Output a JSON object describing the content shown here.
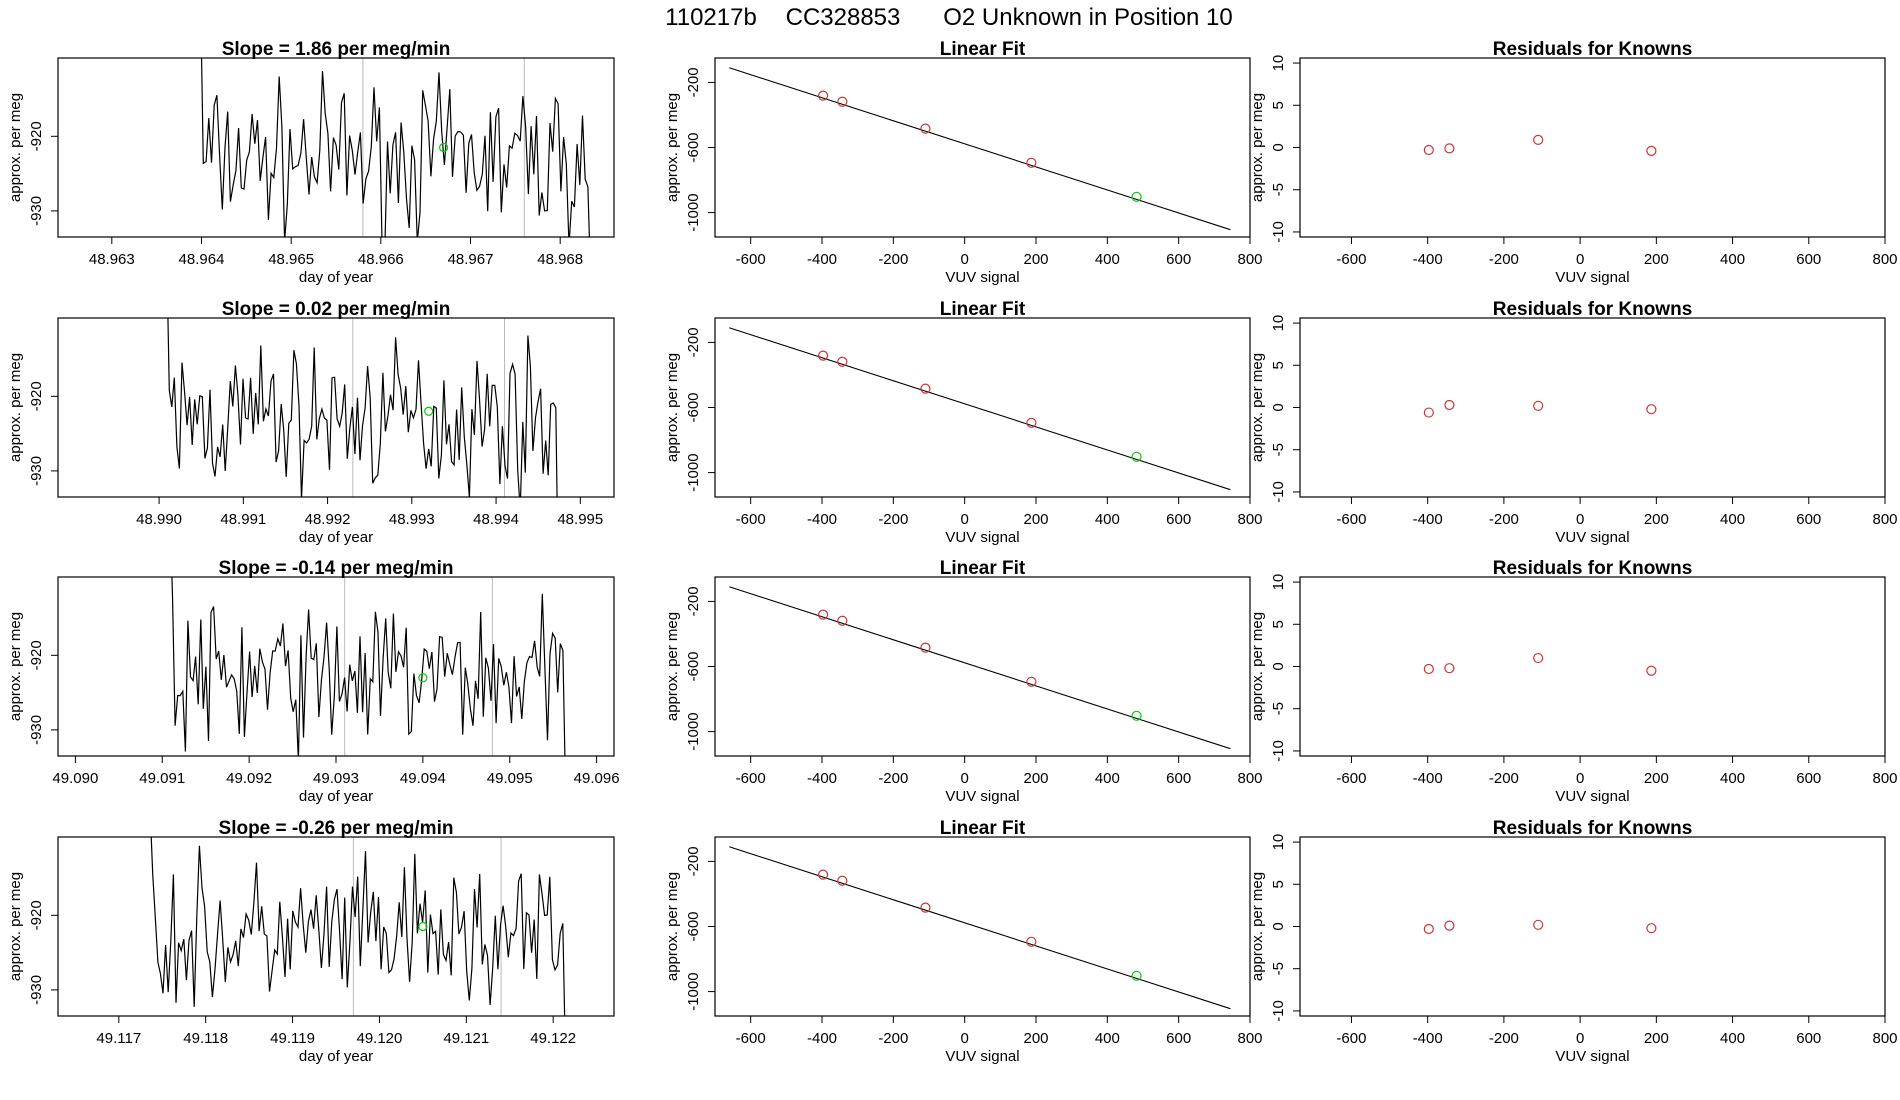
{
  "main_title": {
    "run_id": "110217b",
    "cylinder": "CC328853",
    "description": "O2 Unknown in Position  10"
  },
  "colors": {
    "trace": "#000000",
    "known_points": "#cd3333",
    "unknown_point": "#00cc00",
    "vline": "#bbbbbb",
    "frame": "#000000"
  },
  "chart_data": [
    {
      "type": "line",
      "title": "Slope =  1.86  per meg/min",
      "slope": 1.86,
      "xlabel": "day of year",
      "ylabel": "approx. per meg",
      "xlim": [
        48.9624,
        48.9686
      ],
      "ylim": [
        -933.5,
        -909.5
      ],
      "xticks": [
        48.963,
        48.964,
        48.965,
        48.966,
        48.967,
        48.968
      ],
      "xtick_labels": [
        "48.963",
        "48.964",
        "48.965",
        "48.966",
        "48.967",
        "48.968"
      ],
      "yticks": [
        -930,
        -920
      ],
      "ytick_labels": [
        "-930",
        "-920"
      ],
      "vlines": [
        48.9658,
        48.9676
      ],
      "trace_start": 48.9639,
      "trace_end": 48.9684,
      "trace_points": 150,
      "unknown_point": {
        "x": 48.9667,
        "y": -921.5
      }
    },
    {
      "type": "scatter",
      "title": "Linear Fit",
      "xlabel": "VUV signal",
      "ylabel": "approx. per meg",
      "xlim": [
        -700,
        800
      ],
      "ylim": [
        -1150,
        -50
      ],
      "xticks": [
        -600,
        -400,
        -200,
        0,
        200,
        400,
        600,
        800
      ],
      "xtick_labels": [
        "-600",
        "-400",
        "-200",
        "0",
        "200",
        "400",
        "600",
        "800"
      ],
      "yticks": [
        -1000,
        -600,
        -200
      ],
      "ytick_labels": [
        "-1000",
        "-600",
        "-200"
      ],
      "fit_line": {
        "x": [
          -660,
          745
        ],
        "y": [
          -110,
          -1105
        ]
      },
      "known_points": {
        "x": [
          -397,
          -343,
          -110,
          187
        ],
        "y": [
          -281,
          -319,
          -484,
          -694
        ]
      },
      "unknown_point": {
        "x": 482,
        "y": -903
      }
    },
    {
      "type": "scatter",
      "title": "Residuals for Knowns",
      "xlabel": "VUV signal",
      "ylabel": "approx. per meg",
      "xlim": [
        -735,
        800
      ],
      "ylim": [
        -10.6,
        10.6
      ],
      "xticks": [
        -600,
        -400,
        -200,
        0,
        200,
        400,
        600,
        800
      ],
      "xtick_labels": [
        "-600",
        "-400",
        "-200",
        "0",
        "200",
        "400",
        "600",
        "800"
      ],
      "yticks": [
        -10,
        -5,
        0,
        5,
        10
      ],
      "ytick_labels": [
        "-10",
        "-5",
        "0",
        "5",
        "10"
      ],
      "known_points": {
        "x": [
          -397,
          -343,
          -110,
          187
        ],
        "y": [
          -0.3,
          -0.1,
          0.9,
          -0.4
        ]
      }
    },
    {
      "type": "line",
      "title": "Slope =  0.02  per meg/min",
      "slope": 0.02,
      "xlabel": "day of year",
      "ylabel": "approx. per meg",
      "xlim": [
        48.9888,
        48.9954
      ],
      "ylim": [
        -933.5,
        -909.5
      ],
      "xticks": [
        48.99,
        48.991,
        48.992,
        48.993,
        48.994,
        48.995
      ],
      "xtick_labels": [
        "48.990",
        "48.991",
        "48.992",
        "48.993",
        "48.994",
        "48.995"
      ],
      "yticks": [
        -930,
        -920
      ],
      "ytick_labels": [
        "-930",
        "-920"
      ],
      "vlines": [
        48.9923,
        48.9941
      ],
      "trace_start": 48.99,
      "trace_end": 48.9948,
      "trace_points": 160,
      "unknown_point": {
        "x": 48.9932,
        "y": -922.0
      }
    },
    {
      "type": "scatter",
      "title": "Linear Fit",
      "xlabel": "VUV signal",
      "ylabel": "approx. per meg",
      "xlim": [
        -700,
        800
      ],
      "ylim": [
        -1150,
        -50
      ],
      "xticks": [
        -600,
        -400,
        -200,
        0,
        200,
        400,
        600,
        800
      ],
      "xtick_labels": [
        "-600",
        "-400",
        "-200",
        "0",
        "200",
        "400",
        "600",
        "800"
      ],
      "yticks": [
        -1000,
        -600,
        -200
      ],
      "ytick_labels": [
        "-1000",
        "-600",
        "-200"
      ],
      "fit_line": {
        "x": [
          -660,
          745
        ],
        "y": [
          -110,
          -1105
        ]
      },
      "known_points": {
        "x": [
          -397,
          -343,
          -110,
          187
        ],
        "y": [
          -281,
          -319,
          -484,
          -694
        ]
      },
      "unknown_point": {
        "x": 482,
        "y": -903
      }
    },
    {
      "type": "scatter",
      "title": "Residuals for Knowns",
      "xlabel": "VUV signal",
      "ylabel": "approx. per meg",
      "xlim": [
        -735,
        800
      ],
      "ylim": [
        -10.6,
        10.6
      ],
      "xticks": [
        -600,
        -400,
        -200,
        0,
        200,
        400,
        600,
        800
      ],
      "xtick_labels": [
        "-600",
        "-400",
        "-200",
        "0",
        "200",
        "400",
        "600",
        "800"
      ],
      "yticks": [
        -10,
        -5,
        0,
        5,
        10
      ],
      "ytick_labels": [
        "-10",
        "-5",
        "0",
        "5",
        "10"
      ],
      "known_points": {
        "x": [
          -397,
          -343,
          -110,
          187
        ],
        "y": [
          -0.6,
          0.3,
          0.2,
          -0.2
        ]
      }
    },
    {
      "type": "line",
      "title": "Slope =  -0.14  per meg/min",
      "slope": -0.14,
      "xlabel": "day of year",
      "ylabel": "approx. per meg",
      "xlim": [
        49.0898,
        49.0962
      ],
      "ylim": [
        -933.5,
        -909.5
      ],
      "xticks": [
        49.09,
        49.091,
        49.092,
        49.093,
        49.094,
        49.095,
        49.096
      ],
      "xtick_labels": [
        "49.090",
        "49.091",
        "49.092",
        "49.093",
        "49.094",
        "49.095",
        "49.096"
      ],
      "yticks": [
        -930,
        -920
      ],
      "ytick_labels": [
        "-930",
        "-920"
      ],
      "vlines": [
        49.0931,
        49.0948
      ],
      "trace_start": 49.091,
      "trace_end": 49.0957,
      "trace_points": 160,
      "unknown_point": {
        "x": 49.094,
        "y": -923.0
      }
    },
    {
      "type": "scatter",
      "title": "Linear Fit",
      "xlabel": "VUV signal",
      "ylabel": "approx. per meg",
      "xlim": [
        -700,
        800
      ],
      "ylim": [
        -1150,
        -50
      ],
      "xticks": [
        -600,
        -400,
        -200,
        0,
        200,
        400,
        600,
        800
      ],
      "xtick_labels": [
        "-600",
        "-400",
        "-200",
        "0",
        "200",
        "400",
        "600",
        "800"
      ],
      "yticks": [
        -1000,
        -600,
        -200
      ],
      "ytick_labels": [
        "-1000",
        "-600",
        "-200"
      ],
      "fit_line": {
        "x": [
          -660,
          745
        ],
        "y": [
          -110,
          -1105
        ]
      },
      "known_points": {
        "x": [
          -397,
          -343,
          -110,
          187
        ],
        "y": [
          -281,
          -319,
          -484,
          -694
        ]
      },
      "unknown_point": {
        "x": 482,
        "y": -903
      }
    },
    {
      "type": "scatter",
      "title": "Residuals for Knowns",
      "xlabel": "VUV signal",
      "ylabel": "approx. per meg",
      "xlim": [
        -735,
        800
      ],
      "ylim": [
        -10.6,
        10.6
      ],
      "xticks": [
        -600,
        -400,
        -200,
        0,
        200,
        400,
        600,
        800
      ],
      "xtick_labels": [
        "-600",
        "-400",
        "-200",
        "0",
        "200",
        "400",
        "600",
        "800"
      ],
      "yticks": [
        -10,
        -5,
        0,
        5,
        10
      ],
      "ytick_labels": [
        "-10",
        "-5",
        "0",
        "5",
        "10"
      ],
      "known_points": {
        "x": [
          -397,
          -343,
          -110,
          187
        ],
        "y": [
          -0.3,
          -0.2,
          1.0,
          -0.5
        ]
      }
    },
    {
      "type": "line",
      "title": "Slope =  -0.26  per meg/min",
      "slope": -0.26,
      "xlabel": "day of year",
      "ylabel": "approx. per meg",
      "xlim": [
        49.1163,
        49.1227
      ],
      "ylim": [
        -933.5,
        -909.5
      ],
      "xticks": [
        49.117,
        49.118,
        49.119,
        49.12,
        49.121,
        49.122
      ],
      "xtick_labels": [
        "49.117",
        "49.118",
        "49.119",
        "49.120",
        "49.121",
        "49.122"
      ],
      "yticks": [
        -930,
        -920
      ],
      "ytick_labels": [
        "-930",
        "-920"
      ],
      "vlines": [
        49.1197,
        49.1214
      ],
      "trace_start": 49.1173,
      "trace_end": 49.1222,
      "trace_points": 165,
      "unknown_point": {
        "x": 49.1205,
        "y": -921.5
      }
    },
    {
      "type": "scatter",
      "title": "Linear Fit",
      "xlabel": "VUV signal",
      "ylabel": "approx. per meg",
      "xlim": [
        -700,
        800
      ],
      "ylim": [
        -1150,
        -50
      ],
      "xticks": [
        -600,
        -400,
        -200,
        0,
        200,
        400,
        600,
        800
      ],
      "xtick_labels": [
        "-600",
        "-400",
        "-200",
        "0",
        "200",
        "400",
        "600",
        "800"
      ],
      "yticks": [
        -1000,
        -600,
        -200
      ],
      "ytick_labels": [
        "-1000",
        "-600",
        "-200"
      ],
      "fit_line": {
        "x": [
          -660,
          745
        ],
        "y": [
          -110,
          -1105
        ]
      },
      "known_points": {
        "x": [
          -397,
          -343,
          -110,
          187
        ],
        "y": [
          -281,
          -319,
          -484,
          -694
        ]
      },
      "unknown_point": {
        "x": 482,
        "y": -903
      }
    },
    {
      "type": "scatter",
      "title": "Residuals for Knowns",
      "xlabel": "VUV signal",
      "ylabel": "approx. per meg",
      "xlim": [
        -735,
        800
      ],
      "ylim": [
        -10.6,
        10.6
      ],
      "xticks": [
        -600,
        -400,
        -200,
        0,
        200,
        400,
        600,
        800
      ],
      "xtick_labels": [
        "-600",
        "-400",
        "-200",
        "0",
        "200",
        "400",
        "600",
        "800"
      ],
      "yticks": [
        -10,
        -5,
        0,
        5,
        10
      ],
      "ytick_labels": [
        "-10",
        "-5",
        "0",
        "5",
        "10"
      ],
      "known_points": {
        "x": [
          -397,
          -343,
          -110,
          187
        ],
        "y": [
          -0.3,
          0.1,
          0.2,
          -0.2
        ]
      }
    }
  ]
}
